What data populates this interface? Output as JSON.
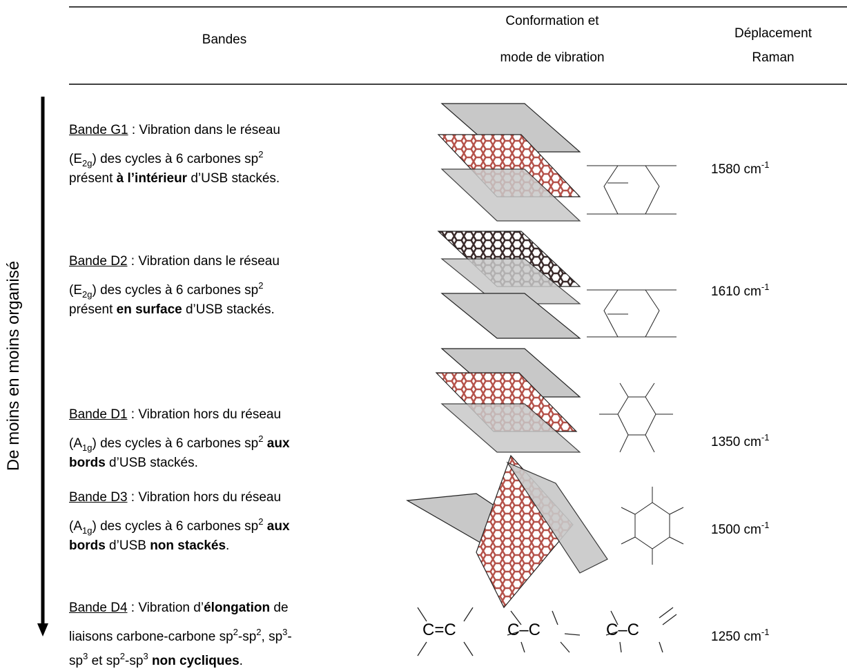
{
  "header": {
    "bands": "Bandes",
    "conformation": [
      "Conformation et",
      "mode de vibration"
    ],
    "raman": [
      "Déplacement",
      "Raman"
    ]
  },
  "side_label": "De moins en moins organisé",
  "rows": [
    {
      "name": "Bande G1",
      "lines": [
        [
          {
            "text": " : Vibration dans le réseau"
          }
        ],
        [
          {
            "text": "(E"
          },
          {
            "text": "2g",
            "format": "sub"
          },
          {
            "text": ") des cycles à 6 carbones sp"
          },
          {
            "text": "2",
            "format": "sup"
          }
        ],
        [
          {
            "text": "présent "
          },
          {
            "text": "à l’intérieur",
            "format": "bold"
          },
          {
            "text": " d’USB stackés."
          }
        ]
      ],
      "raman": [
        {
          "text": "1580 cm"
        },
        {
          "text": "-1",
          "format": "sup"
        }
      ]
    },
    {
      "name": "Bande D2",
      "lines": [
        [
          {
            "text": " : Vibration dans le réseau"
          }
        ],
        [
          {
            "text": "(E"
          },
          {
            "text": "2g",
            "format": "sub"
          },
          {
            "text": ") des cycles à 6 carbones sp"
          },
          {
            "text": "2",
            "format": "sup"
          }
        ],
        [
          {
            "text": "présent "
          },
          {
            "text": "en surface",
            "format": "bold"
          },
          {
            "text": " d’USB stackés."
          }
        ]
      ],
      "raman": [
        {
          "text": "1610 cm"
        },
        {
          "text": "-1",
          "format": "sup"
        }
      ]
    },
    {
      "name": "Bande D1",
      "lines": [
        [
          {
            "text": " : Vibration hors du réseau"
          }
        ],
        [
          {
            "text": "(A"
          },
          {
            "text": "1g",
            "format": "sub"
          },
          {
            "text": ") des cycles à 6 carbones sp"
          },
          {
            "text": "2",
            "format": "sup"
          },
          {
            "text": " "
          },
          {
            "text": "aux",
            "format": "bold"
          }
        ],
        [
          {
            "text": "bords",
            "format": "bold"
          },
          {
            "text": " d’USB stackés."
          }
        ]
      ],
      "raman": [
        {
          "text": "1350 cm"
        },
        {
          "text": "-1",
          "format": "sup"
        }
      ]
    },
    {
      "name": "Bande D3",
      "lines": [
        [
          {
            "text": " : Vibration hors du réseau"
          }
        ],
        [
          {
            "text": "(A"
          },
          {
            "text": "1g",
            "format": "sub"
          },
          {
            "text": ") des cycles à 6 carbones sp"
          },
          {
            "text": "2",
            "format": "sup"
          },
          {
            "text": " "
          },
          {
            "text": "aux",
            "format": "bold"
          }
        ],
        [
          {
            "text": "bords",
            "format": "bold"
          },
          {
            "text": " d’USB "
          },
          {
            "text": "non stackés",
            "format": "bold"
          },
          {
            "text": "."
          }
        ]
      ],
      "raman": [
        {
          "text": "1500 cm"
        },
        {
          "text": "-1",
          "format": "sup"
        }
      ]
    },
    {
      "name": "Bande D4",
      "lines": [
        [
          {
            "text": " : Vibration d’"
          },
          {
            "text": "élongation",
            "format": "bold"
          },
          {
            "text": " de"
          }
        ],
        [
          {
            "text": "liaisons carbone-carbone sp"
          },
          {
            "text": "2",
            "format": "sup"
          },
          {
            "text": "-sp"
          },
          {
            "text": "2",
            "format": "sup"
          },
          {
            "text": ", sp"
          },
          {
            "text": "3",
            "format": "sup"
          },
          {
            "text": "-"
          }
        ],
        [
          {
            "text": "sp"
          },
          {
            "text": "3",
            "format": "sup"
          },
          {
            "text": " et sp"
          },
          {
            "text": "2",
            "format": "sup"
          },
          {
            "text": "-sp"
          },
          {
            "text": "3",
            "format": "sup"
          },
          {
            "text": " "
          },
          {
            "text": "non cycliques",
            "format": "bold"
          },
          {
            "text": "."
          }
        ]
      ],
      "raman": [
        {
          "text": "1250 cm"
        },
        {
          "text": "-1",
          "format": "sup"
        }
      ],
      "formulas": [
        "C=C",
        "C–C",
        "C–C"
      ]
    }
  ]
}
